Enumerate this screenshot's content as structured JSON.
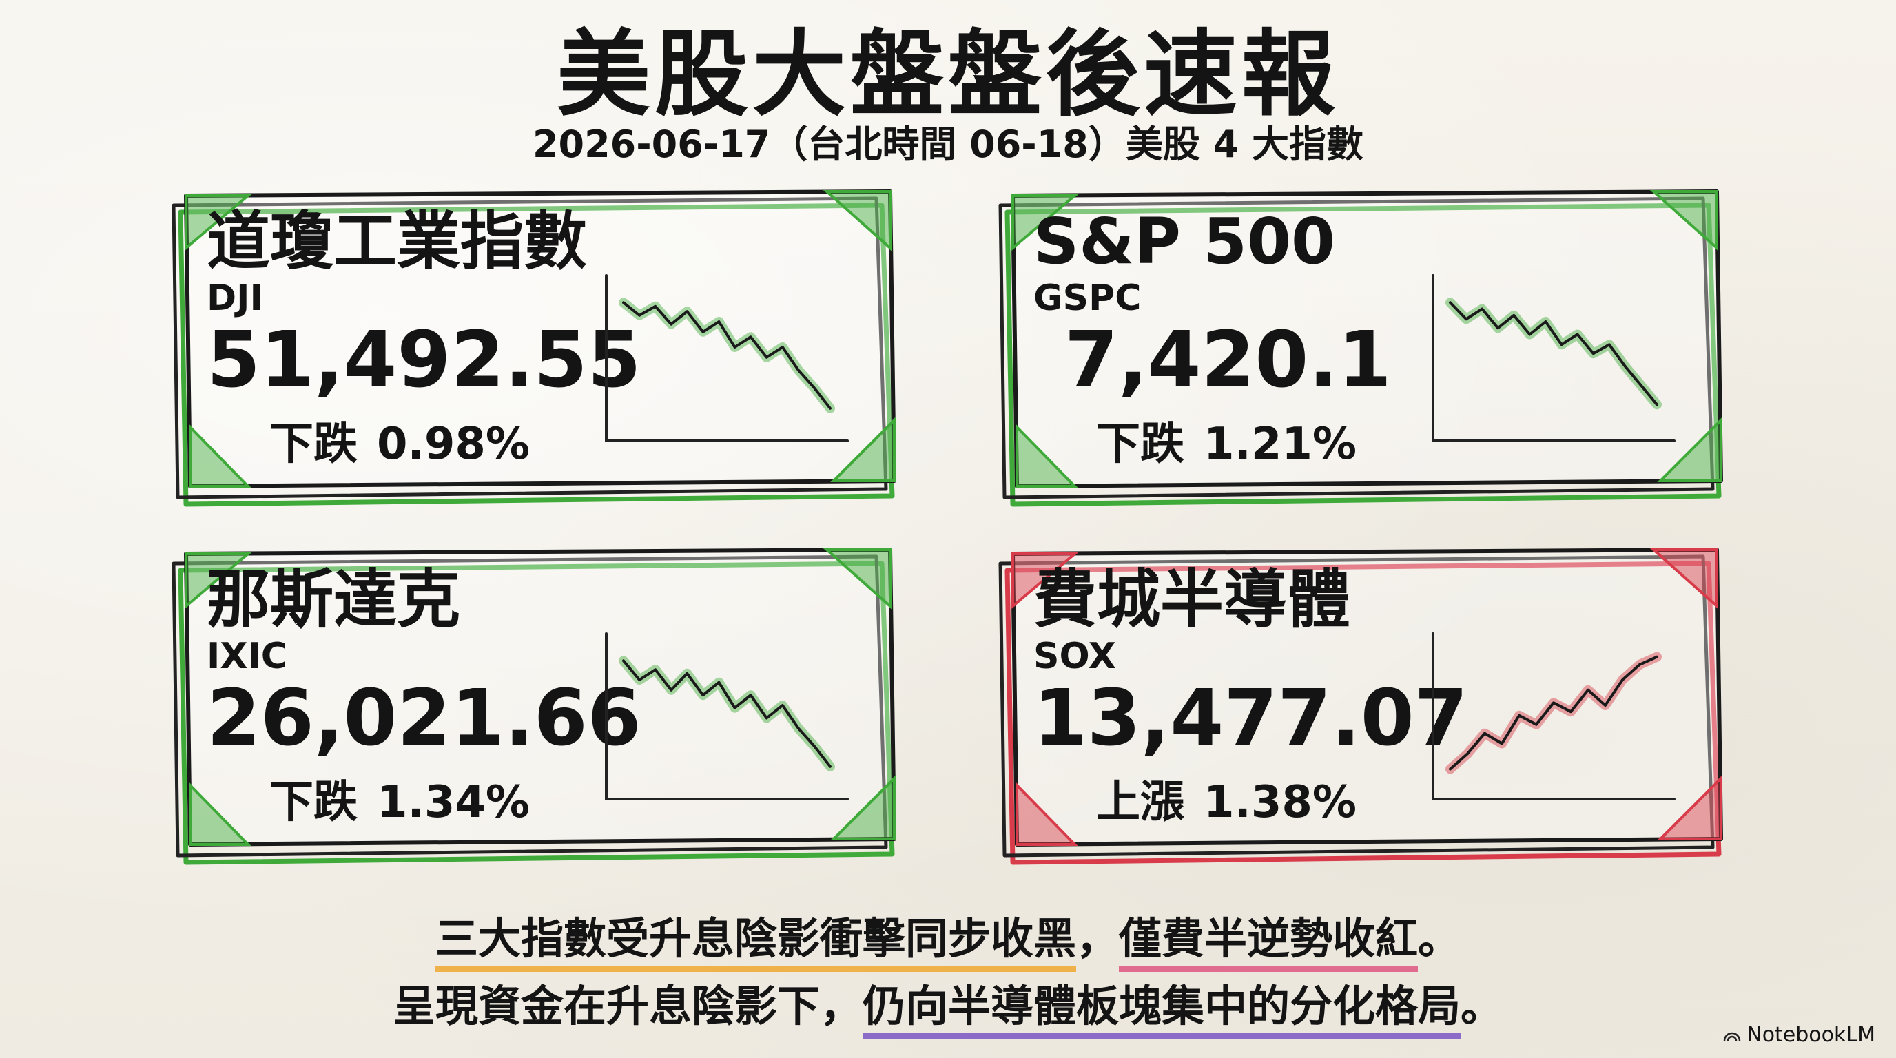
{
  "header": {
    "title": "美股大盤盤後速報",
    "subtitle": "2026-06-17（台北時間 06-18）美股 4 大指數"
  },
  "indices": [
    {
      "name": "道瓊工業指數",
      "code": "DJI",
      "value": "51,492.55",
      "direction": "下跌",
      "change": "0.98%",
      "trend": "down",
      "color": "#3faa3a",
      "spark": [
        0.95,
        0.85,
        0.92,
        0.78,
        0.88,
        0.72,
        0.8,
        0.6,
        0.68,
        0.52,
        0.6,
        0.42,
        0.28,
        0.12
      ]
    },
    {
      "name": "S&P 500",
      "code": "GSPC",
      "value": "7,420.1",
      "direction": "下跌",
      "change": "1.21%",
      "trend": "down",
      "color": "#3faa3a",
      "spark": [
        0.95,
        0.82,
        0.9,
        0.75,
        0.85,
        0.7,
        0.8,
        0.62,
        0.7,
        0.55,
        0.62,
        0.45,
        0.3,
        0.15
      ]
    },
    {
      "name": "那斯達克",
      "code": "IXIC",
      "value": "26,021.66",
      "direction": "下跌",
      "change": "1.34%",
      "trend": "down",
      "color": "#3faa3a",
      "spark": [
        0.95,
        0.8,
        0.88,
        0.72,
        0.85,
        0.68,
        0.78,
        0.58,
        0.68,
        0.5,
        0.6,
        0.42,
        0.28,
        0.12
      ]
    },
    {
      "name": "費城半導體",
      "code": "SOX",
      "value": "13,477.07",
      "direction": "上漲",
      "change": "1.38%",
      "trend": "up",
      "color": "#d83b4a",
      "spark": [
        0.1,
        0.22,
        0.38,
        0.3,
        0.52,
        0.45,
        0.62,
        0.55,
        0.72,
        0.6,
        0.8,
        0.92,
        0.98
      ]
    }
  ],
  "summary": {
    "line1_a": "三大指數受升息陰影衝擊同步收黑",
    "line1_sep": "，",
    "line1_b": "僅費半逆勢收紅",
    "line1_end": "。",
    "line2_a": "呈現資金在升息陰影下，",
    "line2_b": "仍向半導體板塊集中的分化格局",
    "line2_end": "。"
  },
  "branding": {
    "label": "NotebookLM",
    "icon": "notebooklm-logo-icon"
  }
}
